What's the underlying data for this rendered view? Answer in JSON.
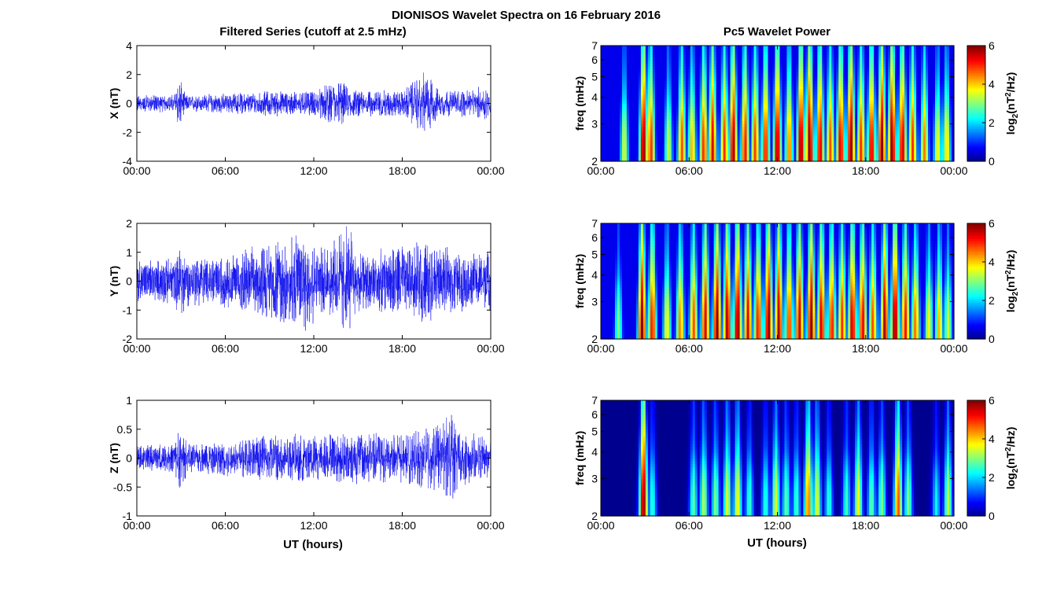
{
  "figure": {
    "title": "DIONISOS Wavelet Spectra on 16 February 2016",
    "left_title": "Filtered Series (cutoff at 2.5 mHz)",
    "right_title": "Pc5 Wavelet Power",
    "xlabel": "UT (hours)",
    "colors": {
      "trace": "#1010ee",
      "axes": "#000000",
      "colormap": [
        "#00008f",
        "#0000ff",
        "#0080ff",
        "#00ffff",
        "#80ff80",
        "#ffff00",
        "#ff8000",
        "#ff0000",
        "#800000"
      ]
    }
  },
  "chart_data": [
    {
      "type": "line",
      "ylabel": "X (nT)",
      "x_ticks": [
        "00:00",
        "06:00",
        "12:00",
        "18:00",
        "00:00"
      ],
      "xlim_hours": [
        0,
        24
      ],
      "ylim": [
        -4,
        4
      ],
      "y_ticks": [
        "4",
        "2",
        "0",
        "-2",
        "-4"
      ],
      "y_tick_values": [
        4,
        2,
        0,
        -2,
        -4
      ],
      "series": [
        {
          "values": [],
          "noise_amplitude": 0.2,
          "envelope_hours": [
            0,
            2.5,
            2.9,
            3.3,
            6,
            9,
            12,
            13.8,
            14.5,
            18,
            19.7,
            20.1,
            20.5,
            22.8,
            23.6,
            24
          ],
          "envelope_values": [
            0.45,
            0.45,
            1.7,
            0.45,
            0.55,
            0.75,
            0.7,
            1.6,
            0.8,
            0.75,
            2.2,
            1.3,
            0.8,
            0.8,
            1.2,
            0.7
          ]
        }
      ]
    },
    {
      "type": "line",
      "ylabel": "Y (nT)",
      "x_ticks": [
        "00:00",
        "06:00",
        "12:00",
        "18:00",
        "00:00"
      ],
      "xlim_hours": [
        0,
        24
      ],
      "ylim": [
        -2,
        2
      ],
      "y_ticks": [
        "2",
        "1",
        "0",
        "-1",
        "-2"
      ],
      "y_tick_values": [
        2,
        1,
        0,
        -1,
        -2
      ],
      "series": [
        {
          "noise_amplitude": 0.35,
          "envelope_hours": [
            0,
            2.6,
            3.0,
            3.4,
            6,
            8.5,
            9.5,
            11.6,
            12.5,
            14.4,
            14.8,
            16,
            18,
            19.5,
            20.5,
            22.5,
            24
          ],
          "envelope_values": [
            0.45,
            0.5,
            1.3,
            0.55,
            0.6,
            1.0,
            1.1,
            1.55,
            0.9,
            1.75,
            0.9,
            0.75,
            0.95,
            1.2,
            0.9,
            0.7,
            0.7
          ]
        }
      ]
    },
    {
      "type": "line",
      "ylabel": "Z (nT)",
      "x_ticks": [
        "00:00",
        "06:00",
        "12:00",
        "18:00",
        "00:00"
      ],
      "xlim_hours": [
        0,
        24
      ],
      "ylim": [
        -1,
        1
      ],
      "y_ticks": [
        "1",
        "0.5",
        "0",
        "-0.5",
        "-1"
      ],
      "y_tick_values": [
        1,
        0.5,
        0,
        -0.5,
        -1
      ],
      "series": [
        {
          "noise_amplitude": 0.08,
          "envelope_hours": [
            0,
            2.6,
            3.0,
            3.4,
            6,
            9,
            12,
            14.0,
            15,
            18,
            20.5,
            21.3,
            21.8,
            23.6,
            24
          ],
          "envelope_values": [
            0.17,
            0.2,
            0.65,
            0.2,
            0.25,
            0.35,
            0.35,
            0.4,
            0.4,
            0.35,
            0.55,
            0.85,
            0.45,
            0.3,
            0.4
          ]
        }
      ]
    },
    {
      "type": "heatmap",
      "ylabel": "freq (mHz)",
      "x_ticks": [
        "00:00",
        "06:00",
        "12:00",
        "18:00",
        "00:00"
      ],
      "xlim_hours": [
        0,
        24
      ],
      "ylim_mhz": [
        2,
        7
      ],
      "y_scale": "log",
      "y_ticks": [
        "7",
        "6",
        "5",
        "4",
        "3",
        "2"
      ],
      "y_tick_values": [
        7,
        6,
        5,
        4,
        3,
        2
      ],
      "colorbar_label": "log2(nT2/Hz)",
      "colorbar_ticks": [
        "6",
        "4",
        "2",
        "0"
      ],
      "clim": [
        0,
        6
      ],
      "bursts_hours": [
        1.6,
        2.9,
        3.4,
        4.6,
        5.5,
        6.2,
        7.0,
        7.6,
        8.4,
        9.0,
        9.8,
        10.5,
        11.2,
        12.0,
        12.8,
        13.6,
        14.2,
        14.9,
        15.6,
        16.3,
        17.0,
        17.7,
        18.4,
        19.1,
        19.8,
        20.5,
        21.2,
        22.0,
        22.9,
        23.5
      ],
      "bursts_level": [
        3.5,
        6.0,
        5.0,
        3.5,
        4.8,
        4.2,
        5.0,
        5.5,
        5.0,
        5.8,
        5.2,
        4.9,
        5.2,
        5.8,
        4.6,
        5.9,
        6.0,
        5.5,
        4.8,
        5.5,
        6.0,
        5.0,
        5.5,
        6.0,
        6.0,
        5.6,
        5.0,
        4.5,
        3.8,
        4.0
      ],
      "background_level": 0.6
    },
    {
      "type": "heatmap",
      "ylabel": "freq (mHz)",
      "x_ticks": [
        "00:00",
        "06:00",
        "12:00",
        "18:00",
        "00:00"
      ],
      "xlim_hours": [
        0,
        24
      ],
      "ylim_mhz": [
        2,
        7
      ],
      "y_scale": "log",
      "y_ticks": [
        "7",
        "6",
        "5",
        "4",
        "3",
        "2"
      ],
      "y_tick_values": [
        7,
        6,
        5,
        4,
        3,
        2
      ],
      "colorbar_label": "log2(nT2/Hz)",
      "colorbar_ticks": [
        "6",
        "4",
        "2",
        "0"
      ],
      "clim": [
        0,
        6
      ],
      "bursts_hours": [
        1.2,
        2.8,
        3.5,
        4.5,
        5.4,
        6.3,
        7.1,
        7.9,
        8.6,
        9.3,
        10.0,
        10.7,
        11.4,
        12.1,
        12.8,
        13.5,
        14.3,
        15.0,
        15.7,
        16.4,
        17.1,
        17.8,
        18.5,
        19.3,
        20.0,
        20.7,
        21.4,
        22.3,
        23.0,
        23.6
      ],
      "bursts_level": [
        3.0,
        6.0,
        5.2,
        3.8,
        4.5,
        4.8,
        5.5,
        6.0,
        5.8,
        6.0,
        5.5,
        5.2,
        6.0,
        5.8,
        5.0,
        5.6,
        6.0,
        5.5,
        5.2,
        5.0,
        5.6,
        5.4,
        4.8,
        5.8,
        6.0,
        5.2,
        4.6,
        3.8,
        4.2,
        3.5
      ],
      "background_level": 0.6
    },
    {
      "type": "heatmap",
      "ylabel": "freq (mHz)",
      "x_ticks": [
        "00:00",
        "06:00",
        "12:00",
        "18:00",
        "00:00"
      ],
      "xlim_hours": [
        0,
        24
      ],
      "ylim_mhz": [
        2,
        7
      ],
      "y_scale": "log",
      "y_ticks": [
        "7",
        "6",
        "5",
        "4",
        "3",
        "2"
      ],
      "y_tick_values": [
        7,
        6,
        5,
        4,
        3,
        2
      ],
      "colorbar_label": "log2(nT2/Hz)",
      "colorbar_ticks": [
        "6",
        "4",
        "2",
        "0"
      ],
      "clim": [
        0,
        6
      ],
      "bursts_hours": [
        2.9,
        3.5,
        6.3,
        7.0,
        7.8,
        8.6,
        9.3,
        10.1,
        11.2,
        11.9,
        12.6,
        13.3,
        14.1,
        14.7,
        15.5,
        16.7,
        17.5,
        18.4,
        19.1,
        20.2,
        20.9,
        22.8,
        23.6
      ],
      "bursts_level": [
        6.0,
        2.5,
        2.8,
        3.3,
        3.0,
        3.6,
        3.8,
        2.6,
        2.5,
        3.6,
        2.8,
        2.6,
        4.6,
        3.6,
        2.5,
        2.6,
        3.8,
        2.8,
        3.0,
        4.8,
        3.0,
        2.2,
        3.4
      ],
      "background_level": 0.0
    }
  ]
}
